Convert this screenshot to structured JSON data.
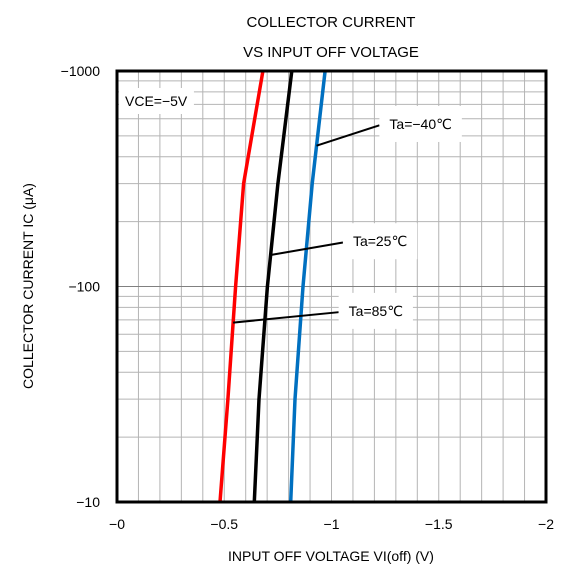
{
  "chart_data": {
    "type": "line",
    "title_lines": [
      "COLLECTOR CURRENT",
      "VS INPUT OFF VOLTAGE"
    ],
    "xlabel": "INPUT OFF VOLTAGE VI(off) (V)",
    "ylabel": "COLLECTOR CURRENT IC (μA)",
    "xlim": [
      0,
      -2
    ],
    "ylim": [
      -10,
      -1000
    ],
    "y_scale": "log",
    "grid": true,
    "x_ticks": [
      0,
      -0.5,
      -1,
      -1.5,
      -2
    ],
    "x_tick_labels": [
      "−0",
      "−0.5",
      "−1",
      "−1.5",
      "−2"
    ],
    "y_ticks": [
      -10,
      -100,
      -1000
    ],
    "y_tick_labels": [
      "−10",
      "−100",
      "−1000"
    ],
    "condition_label": "VCE=−5V",
    "series": [
      {
        "name": "Ta=85℃",
        "color": "#ff0000",
        "x": [
          -0.48,
          -0.517,
          -0.553,
          -0.59,
          -0.68
        ],
        "y": [
          -10,
          -30,
          -100,
          -300,
          -1000
        ]
      },
      {
        "name": "Ta=25℃",
        "color": "#000000",
        "x": [
          -0.64,
          -0.662,
          -0.701,
          -0.75,
          -0.815
        ],
        "y": [
          -10,
          -30,
          -100,
          -300,
          -1000
        ]
      },
      {
        "name": "Ta=−40℃",
        "color": "#0070c0",
        "x": [
          -0.81,
          -0.83,
          -0.867,
          -0.91,
          -0.97
        ],
        "y": [
          -10,
          -30,
          -100,
          -300,
          -1000
        ]
      }
    ],
    "annotations": [
      {
        "text": "Ta=−40℃",
        "series": 2,
        "at_y": -450,
        "label_y": -560,
        "label_x": -1.27
      },
      {
        "text": "Ta=25℃",
        "series": 1,
        "at_y": -140,
        "label_y": -160,
        "label_x": -1.1
      },
      {
        "text": "Ta=85℃",
        "series": 0,
        "at_y": -68,
        "label_y": -76,
        "label_x": -1.08
      }
    ]
  }
}
